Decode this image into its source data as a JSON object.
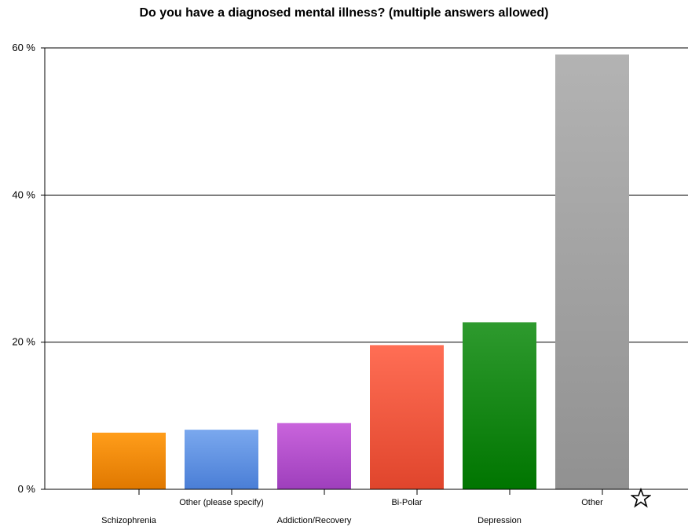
{
  "chart_data": {
    "type": "bar",
    "title": "Do you have a diagnosed mental illness?  (multiple answers allowed)",
    "xlabel": "",
    "ylabel": "",
    "categories": [
      "Schizophrenia",
      "Other (please specify)",
      "Addiction/Recovery",
      "Bi-Polar",
      "Depression",
      "Other"
    ],
    "values": [
      7.7,
      8.1,
      9.0,
      19.6,
      22.7,
      59.1
    ],
    "ylim": [
      0,
      60
    ],
    "yticks": [
      0,
      20,
      40,
      60
    ],
    "ytick_labels": [
      "0 %",
      "20 %",
      "40 %",
      "60 %"
    ],
    "grid": true,
    "colors": [
      [
        "#ff9d1a",
        "#e07800"
      ],
      [
        "#7aa8ee",
        "#4a7ed6"
      ],
      [
        "#c964dc",
        "#9e3fbc"
      ],
      [
        "#ff6e55",
        "#e0452c"
      ],
      [
        "#2e9a2e",
        "#007500"
      ],
      [
        "#b3b3b3",
        "#919191"
      ]
    ]
  },
  "star_icon": "star-icon"
}
